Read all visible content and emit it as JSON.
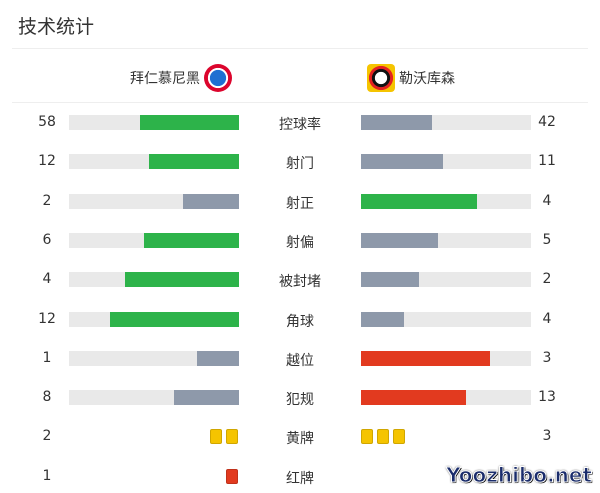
{
  "title": "技术统计",
  "home": {
    "name": "拜仁慕尼黑",
    "logo_icon": "bayern-crest-icon"
  },
  "away": {
    "name": "勒沃库森",
    "logo_icon": "leverkusen-crest-icon"
  },
  "colors": {
    "green": "#2db34a",
    "gray": "#8e99aa",
    "red": "#e23a1f",
    "yellow": "#f5c400",
    "track": "#e9e9e9"
  },
  "stats": [
    {
      "label": "控球率",
      "home": "58",
      "away": "42",
      "home_fill": 0.58,
      "away_fill": 0.42,
      "home_color": "green",
      "away_color": "gray"
    },
    {
      "label": "射门",
      "home": "12",
      "away": "11",
      "home_fill": 0.53,
      "away_fill": 0.48,
      "home_color": "green",
      "away_color": "gray"
    },
    {
      "label": "射正",
      "home": "2",
      "away": "4",
      "home_fill": 0.33,
      "away_fill": 0.68,
      "home_color": "gray",
      "away_color": "green"
    },
    {
      "label": "射偏",
      "home": "6",
      "away": "5",
      "home_fill": 0.56,
      "away_fill": 0.45,
      "home_color": "green",
      "away_color": "gray"
    },
    {
      "label": "被封堵",
      "home": "4",
      "away": "2",
      "home_fill": 0.67,
      "away_fill": 0.34,
      "home_color": "green",
      "away_color": "gray"
    },
    {
      "label": "角球",
      "home": "12",
      "away": "4",
      "home_fill": 0.76,
      "away_fill": 0.25,
      "home_color": "green",
      "away_color": "gray"
    },
    {
      "label": "越位",
      "home": "1",
      "away": "3",
      "home_fill": 0.25,
      "away_fill": 0.76,
      "home_color": "gray",
      "away_color": "red"
    },
    {
      "label": "犯规",
      "home": "8",
      "away": "13",
      "home_fill": 0.38,
      "away_fill": 0.62,
      "home_color": "gray",
      "away_color": "red"
    }
  ],
  "cards": [
    {
      "label": "黄牌",
      "home": "2",
      "away": "3",
      "home_count": 2,
      "away_count": 3,
      "color": "yellow"
    },
    {
      "label": "红牌",
      "home": "1",
      "away": "",
      "home_count": 1,
      "away_count": 0,
      "color": "red"
    }
  ],
  "watermark": "Yoozhibo.net"
}
